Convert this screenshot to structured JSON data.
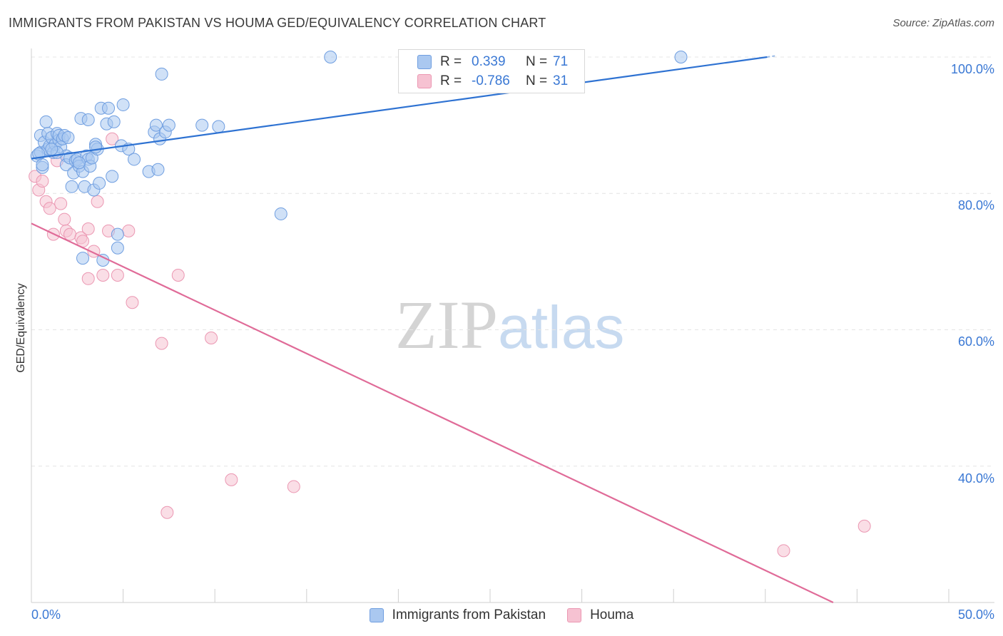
{
  "title": "IMMIGRANTS FROM PAKISTAN VS HOUMA GED/EQUIVALENCY CORRELATION CHART",
  "source": "Source: ZipAtlas.com",
  "watermark": {
    "zip": "ZIP",
    "atlas": "atlas"
  },
  "legend": {
    "r_label": "R =",
    "n_label": "N =",
    "rows": [
      {
        "r": "0.339",
        "n": "71"
      },
      {
        "r": "-0.786",
        "n": "31"
      }
    ]
  },
  "colors": {
    "blue_fill": "#aac8f0",
    "blue_stroke": "#6f9ee0",
    "blue_line": "#2e72d2",
    "pink_fill": "#f6c2d2",
    "pink_stroke": "#eb97b2",
    "pink_line": "#e06b98",
    "tick_text": "#3a78d4"
  },
  "chart_data": {
    "type": "scatter",
    "title": "IMMIGRANTS FROM PAKISTAN VS HOUMA GED/EQUIVALENCY CORRELATION CHART",
    "xlabel": "",
    "ylabel": "GED/Equivalency",
    "xlim": [
      0,
      50
    ],
    "ylim": [
      20,
      102
    ],
    "x_tick_labels": [
      "0.0%",
      "50.0%"
    ],
    "y_ticks": [
      40,
      60,
      80,
      100
    ],
    "y_tick_labels": [
      "40.0%",
      "60.0%",
      "80.0%",
      "100.0%"
    ],
    "grid": true,
    "legend_position": "top-center",
    "series": [
      {
        "name": "Immigrants from Pakistan",
        "color": "#aac8f0",
        "trend": {
          "x": [
            0,
            40.1
          ],
          "y": [
            85.1,
            100.0
          ]
        },
        "points": [
          [
            0.3,
            85.5
          ],
          [
            0.5,
            88.5
          ],
          [
            0.5,
            86.0
          ],
          [
            0.6,
            83.8
          ],
          [
            0.7,
            87.5
          ],
          [
            0.8,
            90.5
          ],
          [
            0.9,
            86.5
          ],
          [
            0.9,
            88.8
          ],
          [
            1.0,
            87.0
          ],
          [
            1.1,
            88.2
          ],
          [
            1.2,
            86.0
          ],
          [
            1.3,
            87.2
          ],
          [
            1.4,
            88.8
          ],
          [
            1.5,
            87.8
          ],
          [
            1.5,
            88.5
          ],
          [
            1.6,
            86.8
          ],
          [
            1.7,
            88.0
          ],
          [
            1.8,
            88.5
          ],
          [
            1.9,
            85.5
          ],
          [
            1.9,
            84.2
          ],
          [
            2.0,
            88.2
          ],
          [
            2.1,
            85.2
          ],
          [
            2.2,
            81.0
          ],
          [
            2.3,
            83.0
          ],
          [
            2.4,
            84.8
          ],
          [
            2.5,
            85.0
          ],
          [
            2.6,
            84.0
          ],
          [
            2.7,
            91.0
          ],
          [
            2.8,
            83.2
          ],
          [
            2.9,
            81.0
          ],
          [
            3.0,
            85.5
          ],
          [
            3.1,
            85.0
          ],
          [
            3.1,
            90.8
          ],
          [
            3.2,
            84.0
          ],
          [
            3.3,
            85.2
          ],
          [
            3.4,
            80.5
          ],
          [
            3.5,
            87.2
          ],
          [
            3.6,
            86.5
          ],
          [
            3.7,
            81.5
          ],
          [
            3.8,
            92.5
          ],
          [
            4.1,
            90.2
          ],
          [
            4.2,
            92.5
          ],
          [
            4.4,
            82.5
          ],
          [
            4.5,
            90.5
          ],
          [
            4.7,
            72.0
          ],
          [
            4.7,
            74.0
          ],
          [
            4.9,
            87.0
          ],
          [
            5.0,
            93.0
          ],
          [
            5.3,
            86.5
          ],
          [
            5.6,
            85.0
          ],
          [
            6.4,
            83.2
          ],
          [
            6.7,
            89.0
          ],
          [
            6.8,
            90.0
          ],
          [
            6.9,
            83.5
          ],
          [
            7.0,
            88.0
          ],
          [
            7.1,
            97.5
          ],
          [
            7.3,
            89.0
          ],
          [
            7.5,
            90.0
          ],
          [
            9.3,
            90.0
          ],
          [
            10.2,
            89.8
          ],
          [
            13.6,
            77.0
          ],
          [
            16.3,
            100.0
          ],
          [
            35.4,
            100.0
          ],
          [
            2.8,
            70.5
          ],
          [
            3.9,
            70.2
          ],
          [
            0.4,
            85.8
          ],
          [
            0.6,
            84.2
          ],
          [
            1.4,
            86.0
          ],
          [
            2.6,
            84.5
          ],
          [
            3.5,
            86.8
          ],
          [
            1.1,
            86.5
          ]
        ]
      },
      {
        "name": "Houma",
        "color": "#f6c2d2",
        "trend": {
          "x": [
            0,
            43.7
          ],
          "y": [
            75.6,
            20.0
          ]
        },
        "points": [
          [
            0.2,
            82.5
          ],
          [
            0.4,
            80.5
          ],
          [
            0.6,
            81.8
          ],
          [
            0.8,
            78.8
          ],
          [
            1.0,
            77.8
          ],
          [
            1.2,
            74.0
          ],
          [
            1.4,
            84.8
          ],
          [
            1.6,
            78.5
          ],
          [
            1.8,
            76.2
          ],
          [
            1.9,
            74.5
          ],
          [
            2.1,
            74.0
          ],
          [
            2.7,
            73.5
          ],
          [
            2.8,
            73.0
          ],
          [
            3.1,
            74.8
          ],
          [
            3.1,
            67.5
          ],
          [
            3.4,
            71.5
          ],
          [
            3.6,
            78.8
          ],
          [
            3.9,
            68.0
          ],
          [
            4.2,
            74.5
          ],
          [
            4.4,
            88.0
          ],
          [
            4.7,
            68.0
          ],
          [
            5.3,
            74.5
          ],
          [
            5.5,
            64.0
          ],
          [
            7.1,
            58.0
          ],
          [
            7.4,
            33.2
          ],
          [
            8.0,
            68.0
          ],
          [
            9.8,
            58.8
          ],
          [
            10.9,
            38.0
          ],
          [
            14.3,
            37.0
          ],
          [
            41.0,
            27.6
          ],
          [
            45.4,
            31.2
          ]
        ]
      }
    ]
  },
  "bottom_legend": [
    "Immigrants from Pakistan",
    "Houma"
  ]
}
